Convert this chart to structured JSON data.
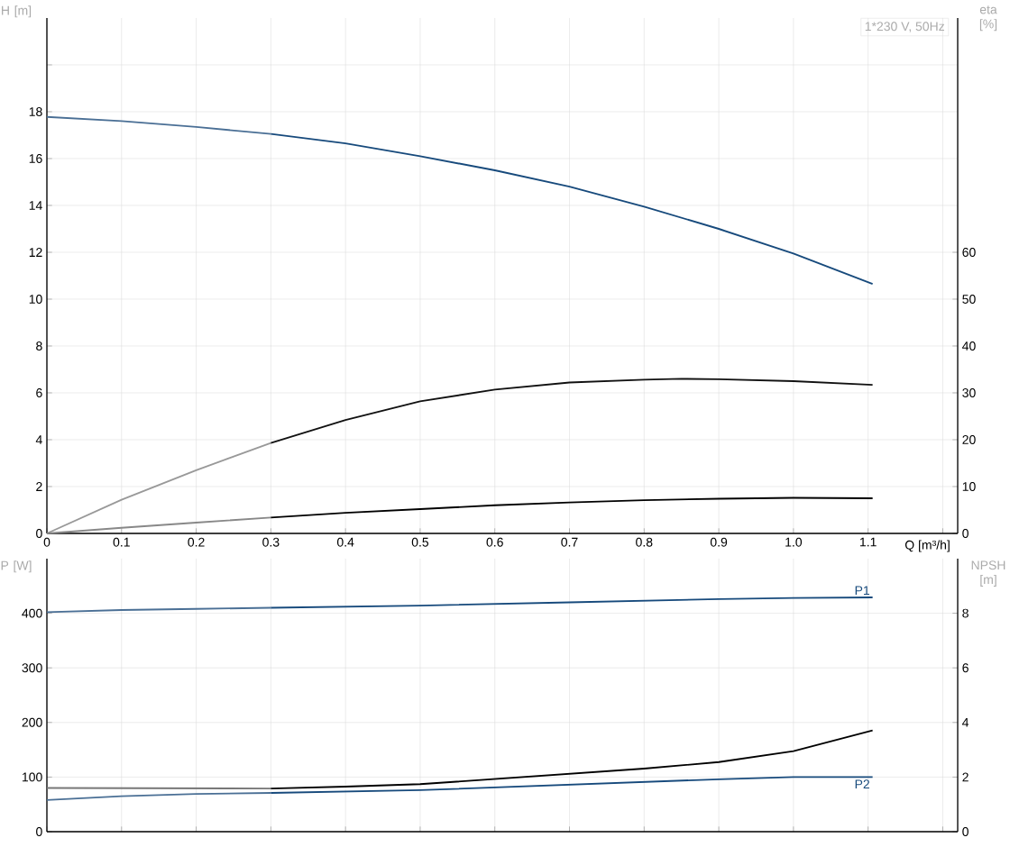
{
  "chart_data": [
    {
      "type": "line",
      "title": "1*230 V, 50Hz",
      "xlabel": "Q [m³/h]",
      "ylabel": "H [m]",
      "y2label": "eta [%]",
      "grid": true,
      "xlim": [
        0,
        1.22
      ],
      "xticks": [
        0,
        0.1,
        0.2,
        0.3,
        0.4,
        0.5,
        0.6,
        0.7,
        0.8,
        0.9,
        {
          "value": 1.0,
          "label": "1.0"
        },
        1.1,
        {
          "value": 1.2,
          "label": null
        }
      ],
      "ylim": [
        0,
        22
      ],
      "yticks": [
        0,
        2,
        4,
        6,
        8,
        10,
        12,
        14,
        16,
        18,
        {
          "value": 20,
          "label": null
        }
      ],
      "y2lim": [
        0,
        110
      ],
      "y2ticks": [
        0,
        10,
        20,
        30,
        40,
        50,
        60
      ],
      "series": [
        {
          "color": "#4a6f95",
          "x": [
            0,
            0.1,
            0.2,
            0.3
          ],
          "values": [
            17.78,
            17.6,
            17.35,
            17.05
          ]
        },
        {
          "color": "#174a7c",
          "x": [
            0.3,
            0.4,
            0.5,
            0.6,
            0.7,
            0.8,
            0.9,
            1.0,
            1.106
          ],
          "values": [
            17.05,
            16.65,
            16.1,
            15.5,
            14.8,
            13.95,
            13.0,
            11.95,
            10.65
          ]
        },
        {
          "color": "#999999",
          "axis": "y2",
          "x": [
            0,
            0.1,
            0.2,
            0.3
          ],
          "values": [
            0,
            7.2,
            13.5,
            19.3
          ]
        },
        {
          "color": "#111111",
          "axis": "y2",
          "x": [
            0.3,
            0.4,
            0.5,
            0.6,
            0.7,
            0.8,
            0.85,
            0.9,
            1.0,
            1.106
          ],
          "values": [
            19.3,
            24.2,
            28.2,
            30.7,
            32.2,
            32.8,
            33.0,
            32.9,
            32.5,
            31.7
          ]
        },
        {
          "color": "#888888",
          "axis": "y2",
          "x": [
            0,
            0.1,
            0.2,
            0.3
          ],
          "values": [
            0,
            1.2,
            2.3,
            3.4
          ]
        },
        {
          "color": "#000000",
          "axis": "y2",
          "x": [
            0.3,
            0.4,
            0.5,
            0.6,
            0.7,
            0.8,
            0.9,
            1.0,
            1.106
          ],
          "values": [
            3.4,
            4.4,
            5.2,
            6.0,
            6.6,
            7.1,
            7.4,
            7.6,
            7.5
          ]
        }
      ]
    },
    {
      "type": "line",
      "ylabel": "P [W]",
      "y2label": "NPSH [m]",
      "grid": true,
      "tick_labels": "y",
      "xlim": [
        0,
        1.22
      ],
      "xticks": [
        0,
        0.1,
        0.2,
        0.3,
        0.4,
        0.5,
        0.6,
        0.7,
        0.8,
        0.9,
        1.0,
        1.1,
        1.2
      ],
      "ylim": [
        0,
        500
      ],
      "yticks": [
        0,
        100,
        200,
        300,
        400
      ],
      "y2lim": [
        0,
        10
      ],
      "y2ticks": [
        0,
        2,
        4,
        6,
        8
      ],
      "series": [
        {
          "color": "#4a6f95",
          "x": [
            0,
            0.1,
            0.2,
            0.3
          ],
          "values": [
            402,
            406,
            408,
            410
          ]
        },
        {
          "name": "P1",
          "color": "#174a7c",
          "x": [
            0.3,
            0.5,
            0.7,
            0.9,
            1.0,
            1.106
          ],
          "values": [
            410,
            414,
            420,
            426,
            428,
            429
          ]
        },
        {
          "color": "#4a6f95",
          "x": [
            0,
            0.1,
            0.2,
            0.3
          ],
          "values": [
            58,
            65,
            69,
            71
          ]
        },
        {
          "name": "P2",
          "color": "#174a7c",
          "x": [
            0.3,
            0.5,
            0.7,
            0.9,
            1.0,
            1.106
          ],
          "values": [
            71,
            76,
            86,
            96,
            100,
            100
          ]
        },
        {
          "color": "#777777",
          "axis": "y2",
          "x": [
            0,
            0.3
          ],
          "values": [
            1.6,
            1.58
          ]
        },
        {
          "color": "#000000",
          "axis": "y2",
          "x": [
            0.3,
            0.4,
            0.5,
            0.6,
            0.7,
            0.8,
            0.9,
            1.0,
            1.106
          ],
          "values": [
            1.58,
            1.65,
            1.74,
            1.93,
            2.12,
            2.31,
            2.55,
            2.95,
            3.71
          ]
        }
      ]
    }
  ]
}
